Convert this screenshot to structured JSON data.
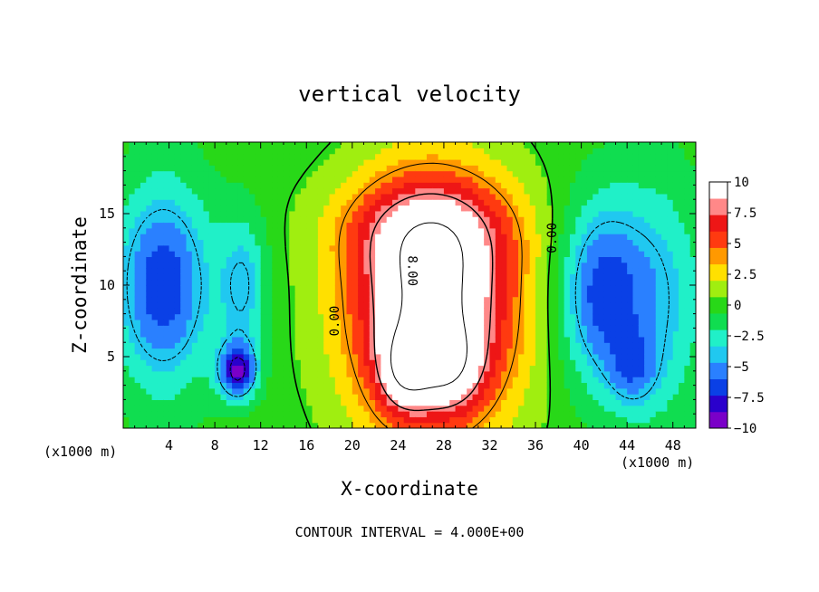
{
  "chart_data": {
    "type": "heatmap",
    "title": "vertical velocity",
    "xlabel": "X-coordinate",
    "ylabel": "Z-coordinate",
    "x_unit_left": "(x1000 m)",
    "x_unit_right": "(x1000 m)",
    "xlim": [
      0,
      50
    ],
    "ylim": [
      0,
      20
    ],
    "x_ticks": [
      {
        "v": 4,
        "label": "4"
      },
      {
        "v": 8,
        "label": "8"
      },
      {
        "v": 12,
        "label": "12"
      },
      {
        "v": 16,
        "label": "16"
      },
      {
        "v": 20,
        "label": "20"
      },
      {
        "v": 24,
        "label": "24"
      },
      {
        "v": 28,
        "label": "28"
      },
      {
        "v": 32,
        "label": "32"
      },
      {
        "v": 36,
        "label": "36"
      },
      {
        "v": 40,
        "label": "40"
      },
      {
        "v": 44,
        "label": "44"
      },
      {
        "v": 48,
        "label": "48"
      }
    ],
    "y_ticks": [
      {
        "v": 5,
        "label": "5"
      },
      {
        "v": 10,
        "label": "10"
      },
      {
        "v": 15,
        "label": "15"
      }
    ],
    "colorbar": {
      "min": -10,
      "max": 10,
      "ticks": [
        {
          "v": 10,
          "label": "10"
        },
        {
          "v": 7.5,
          "label": "7.5"
        },
        {
          "v": 5,
          "label": "5"
        },
        {
          "v": 2.5,
          "label": "2.5"
        },
        {
          "v": 0,
          "label": "0"
        },
        {
          "v": -2.5,
          "label": "−2.5"
        },
        {
          "v": -5,
          "label": "−5"
        },
        {
          "v": -7.5,
          "label": "−7.5"
        },
        {
          "v": -10,
          "label": "−10"
        }
      ],
      "colors": [
        "#7a00c8",
        "#2a00cc",
        "#0a40e6",
        "#2a80ff",
        "#20c8f0",
        "#20f0c8",
        "#10dd50",
        "#28d818",
        "#a0ee10",
        "#ffe000",
        "#ff9900",
        "#ff3a10",
        "#ee1616",
        "#ff8888",
        "#ffffff"
      ]
    },
    "contour_interval_text": "CONTOUR INTERVAL = 4.000E+00",
    "contour_labels": [
      {
        "text": "0.00",
        "x": 18.5,
        "y": 7.5,
        "rotate": -90
      },
      {
        "text": "0.00",
        "x": 37.5,
        "y": 13.3,
        "rotate": -90
      },
      {
        "text": "8.00",
        "x": 25.2,
        "y": 11.0,
        "rotate": 90
      }
    ],
    "features": [
      {
        "name": "updraft-core",
        "x": 27.0,
        "y": 8.5,
        "sx": 5.0,
        "sy": 6.0,
        "amp": 13
      },
      {
        "name": "updraft-left-lobe",
        "x": 24.5,
        "y": 4.0,
        "sx": 1.6,
        "sy": 2.0,
        "amp": 5
      },
      {
        "name": "updraft-right-lobe",
        "x": 28.5,
        "y": 4.2,
        "sx": 2.0,
        "sy": 2.0,
        "amp": 4
      },
      {
        "name": "updraft-top",
        "x": 26.5,
        "y": 14.0,
        "sx": 5.5,
        "sy": 2.5,
        "amp": 4
      },
      {
        "name": "downdraft-left",
        "x": 3.5,
        "y": 10.0,
        "sx": 3.0,
        "sy": 5.0,
        "amp": -7
      },
      {
        "name": "downdraft-left-inner",
        "x": 10.0,
        "y": 4.0,
        "sx": 1.2,
        "sy": 1.4,
        "amp": -8
      },
      {
        "name": "downdraft-left-band",
        "x": 10.5,
        "y": 10.0,
        "sx": 1.5,
        "sy": 3.5,
        "amp": -4
      },
      {
        "name": "downdraft-right",
        "x": 41.5,
        "y": 9.5,
        "sx": 2.5,
        "sy": 4.5,
        "amp": -6
      },
      {
        "name": "downdraft-right-band",
        "x": 46.5,
        "y": 9.0,
        "sx": 3.0,
        "sy": 6.0,
        "amp": -4
      },
      {
        "name": "downdraft-right-low",
        "x": 44.5,
        "y": 4.0,
        "sx": 1.5,
        "sy": 1.8,
        "amp": -3
      }
    ]
  }
}
